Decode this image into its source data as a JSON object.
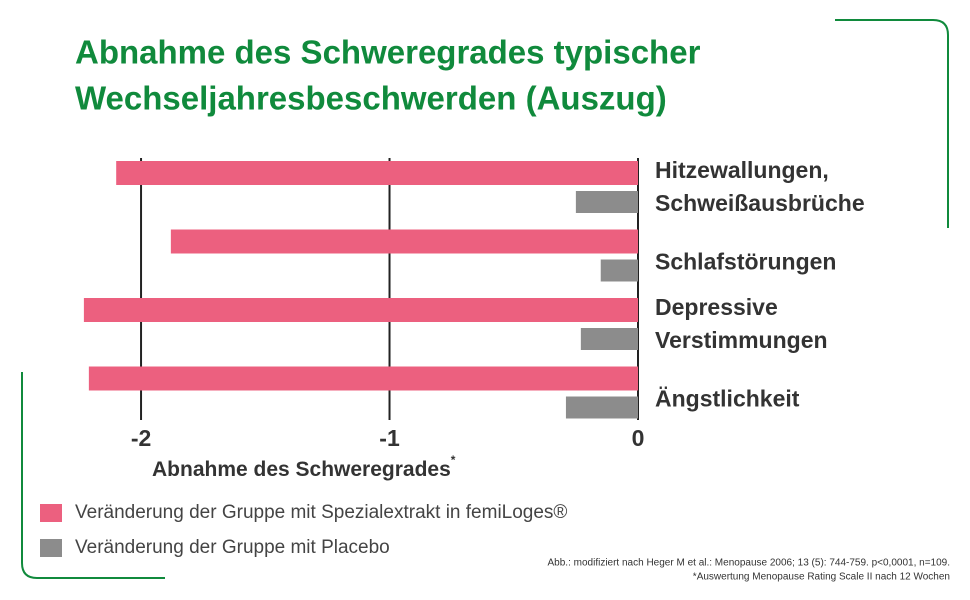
{
  "chart_data": {
    "type": "barh",
    "title": [
      "Abnahme des Schweregrades typischer",
      "Wechseljahresbeschwerden (Auszug)"
    ],
    "categories": [
      "Hitzewallungen,\nSchweißausbrüche",
      "Schlafstörungen",
      "Depressive\nVerstimmungen",
      "Ängstlichkeit"
    ],
    "series": [
      {
        "name": "Veränderung der Gruppe mit Spezialextrakt in femiLoges®",
        "color": "#ec607f",
        "values": [
          -2.1,
          -1.88,
          -2.23,
          -2.21
        ]
      },
      {
        "name": "Veränderung der Gruppe mit Placebo",
        "color": "#8c8c8c",
        "values": [
          -0.25,
          -0.15,
          -0.23,
          -0.29
        ]
      }
    ],
    "xlabel": "Abnahme des Schweregrades",
    "xlabel_note": "*",
    "xlim": [
      -2.3,
      0
    ],
    "xticks": [
      -2,
      -1,
      0
    ],
    "grid": true,
    "notes": [
      "Abb.: modifiziert nach Heger M et al.: Menopause 2006; 13 (5): 744-759. p<0,0001, n=109.",
      "*Auswertung Menopause Rating Scale II nach 12 Wochen"
    ]
  }
}
